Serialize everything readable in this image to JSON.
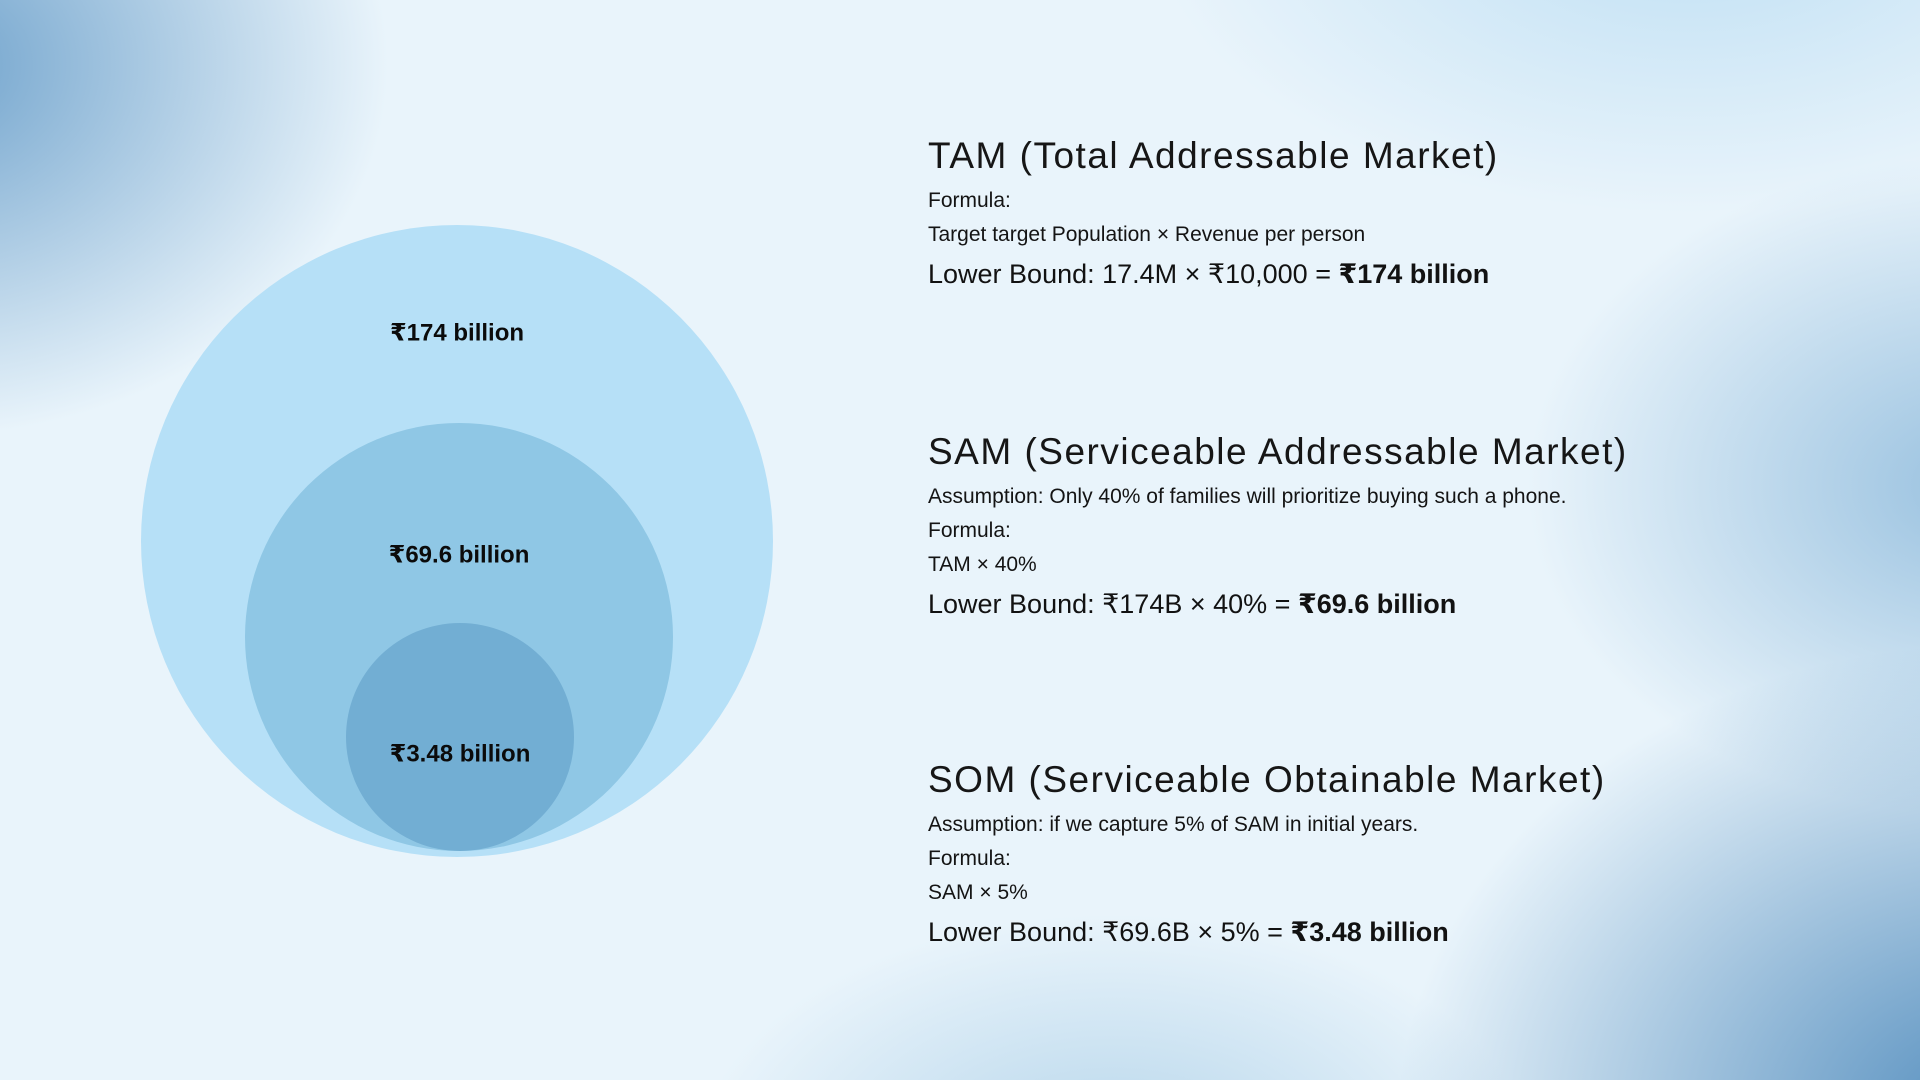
{
  "venn": {
    "tam_label": "₹174 billion",
    "sam_label": "₹69.6 billion",
    "som_label": "₹3.48 billion"
  },
  "sections": [
    {
      "title": "TAM (Total Addressable Market)",
      "lines": [
        "Formula:",
        "Target target Population × Revenue per person"
      ],
      "result_prefix": "Lower Bound: 17.4M × ₹10,000 = ",
      "result_value": "₹174 billion"
    },
    {
      "title": "SAM (Serviceable Addressable Market)",
      "lines": [
        "Assumption: Only 40% of families will prioritize buying such a phone.",
        "Formula:",
        "TAM × 40%"
      ],
      "result_prefix": "Lower Bound: ₹174B × 40% = ",
      "result_value": "₹69.6 billion"
    },
    {
      "title": "SOM (Serviceable Obtainable Market)",
      "lines": [
        "Assumption: if we capture 5% of SAM in initial years.",
        "Formula:",
        "SAM × 5%"
      ],
      "result_prefix": "Lower Bound: ₹69.6B × 5% = ",
      "result_value": "₹3.48 billion"
    }
  ]
}
